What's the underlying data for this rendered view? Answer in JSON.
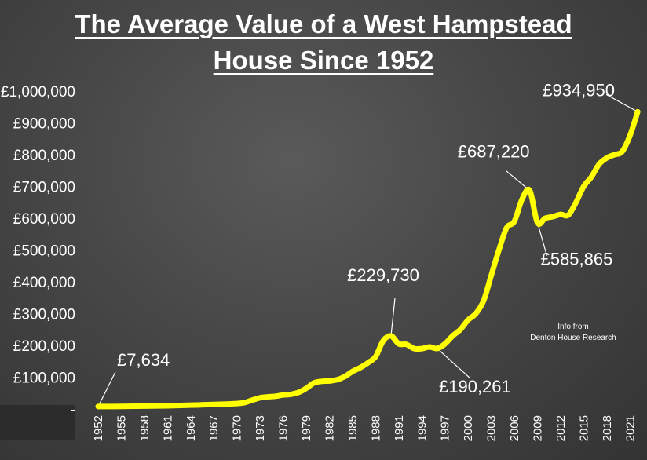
{
  "chart_data": {
    "type": "line",
    "title_line1": "The Average Value of a West Hampstead",
    "title_line2": "House Since 1952",
    "xlabel": "",
    "ylabel": "",
    "xlim": [
      1952,
      2022.5
    ],
    "ylim": [
      0,
      1000000
    ],
    "grid": false,
    "legend": "none",
    "line_color": "#ffff00",
    "yticks": [
      {
        "value": 0,
        "label": "-"
      },
      {
        "value": 100000,
        "label": "£100,000"
      },
      {
        "value": 200000,
        "label": "£200,000"
      },
      {
        "value": 300000,
        "label": "£300,000"
      },
      {
        "value": 400000,
        "label": "£400,000"
      },
      {
        "value": 500000,
        "label": "£500,000"
      },
      {
        "value": 600000,
        "label": "£600,000"
      },
      {
        "value": 700000,
        "label": "£700,000"
      },
      {
        "value": 800000,
        "label": "£800,000"
      },
      {
        "value": 900000,
        "label": "£900,000"
      },
      {
        "value": 1000000,
        "label": "£1,000,000"
      }
    ],
    "xticks": [
      "1952",
      "1955",
      "1958",
      "1961",
      "1964",
      "1967",
      "1970",
      "1973",
      "1976",
      "1979",
      "1982",
      "1985",
      "1988",
      "1991",
      "1994",
      "1997",
      "2000",
      "2003",
      "2006",
      "2009",
      "2012",
      "2015",
      "2018",
      "2021"
    ],
    "series": [
      {
        "x": [
          1952,
          1955,
          1958,
          1961,
          1964,
          1967,
          1970,
          1971,
          1972,
          1973,
          1974,
          1975,
          1976,
          1977,
          1978,
          1979,
          1980,
          1981,
          1982,
          1983,
          1984,
          1985,
          1986,
          1987,
          1988,
          1989,
          1990,
          1991,
          1992,
          1993,
          1994,
          1995,
          1996,
          1997,
          1998,
          1999,
          2000,
          2001,
          2002,
          2003,
          2004,
          2005,
          2006,
          2007,
          2008,
          2009,
          2010,
          2011,
          2012,
          2013,
          2014,
          2015,
          2016,
          2017,
          2018,
          2019,
          2020,
          2021,
          2022
        ],
        "y": [
          7634,
          8000,
          8800,
          10000,
          12000,
          14000,
          17000,
          20000,
          28000,
          35000,
          38000,
          40000,
          44000,
          46000,
          52000,
          65000,
          82000,
          87000,
          88000,
          92000,
          102000,
          118000,
          130000,
          145000,
          165000,
          215000,
          229730,
          205000,
          203000,
          190000,
          190000,
          195000,
          190261,
          205000,
          230000,
          250000,
          280000,
          300000,
          340000,
          420000,
          500000,
          570000,
          590000,
          660000,
          687220,
          585865,
          600000,
          605000,
          612000,
          610000,
          650000,
          700000,
          730000,
          770000,
          790000,
          800000,
          810000,
          860000,
          934950
        ]
      }
    ],
    "annotations": [
      {
        "label": "£7,634",
        "x": 1952,
        "y": 7634
      },
      {
        "label": "£229,730",
        "x": 1990,
        "y": 229730
      },
      {
        "label": "£190,261",
        "x": 1996,
        "y": 190261
      },
      {
        "label": "£687,220",
        "x": 2008,
        "y": 687220
      },
      {
        "label": "£585,865",
        "x": 2009,
        "y": 585865
      },
      {
        "label": "£934,950",
        "x": 2022,
        "y": 934950
      }
    ],
    "note_line1": "Info from",
    "note_line2": "Denton House Research"
  }
}
